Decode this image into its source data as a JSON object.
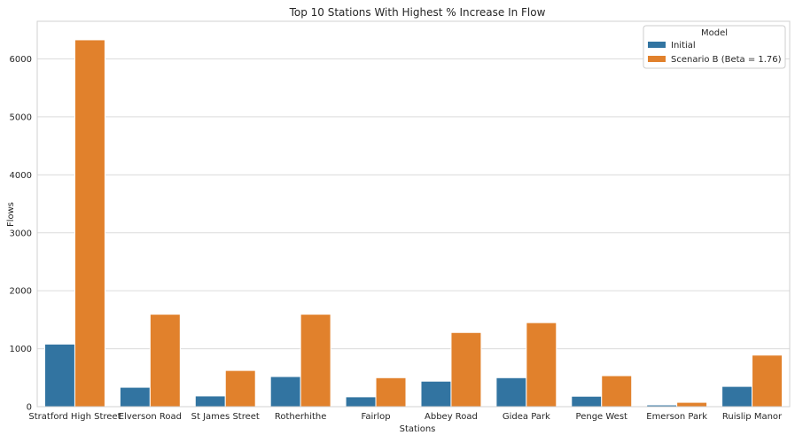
{
  "chart_data": {
    "type": "bar",
    "title": "Top 10 Stations With Highest % Increase In Flow",
    "xlabel": "Stations",
    "ylabel": "Flows",
    "categories": [
      "Stratford High Street",
      "Elverson Road",
      "St James Street",
      "Rotherhithe",
      "Fairlop",
      "Abbey Road",
      "Gidea Park",
      "Penge West",
      "Emerson Park",
      "Ruislip Manor"
    ],
    "series": [
      {
        "name": "Initial",
        "color": "#3274a1",
        "values": [
          1080,
          335,
          185,
          520,
          170,
          440,
          500,
          180,
          30,
          350
        ]
      },
      {
        "name": "Scenario B (Beta = 1.76)",
        "color": "#e1812c",
        "values": [
          6330,
          1595,
          625,
          1595,
          500,
          1280,
          1450,
          535,
          75,
          890
        ]
      }
    ],
    "ylim": [
      0,
      6650
    ],
    "yticks": [
      0,
      1000,
      2000,
      3000,
      4000,
      5000,
      6000
    ],
    "grid": true,
    "legend": {
      "title": "Model",
      "position": "top-right"
    }
  }
}
